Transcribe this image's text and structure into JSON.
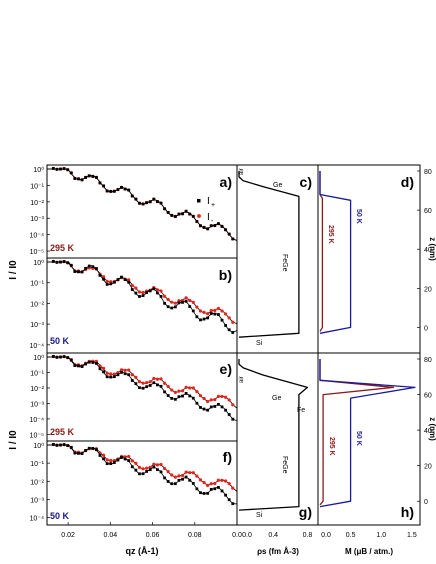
{
  "panels": {
    "a": {
      "label": "a)",
      "temperature": "295 K",
      "temp_color": "#8b1a1a"
    },
    "b": {
      "label": "b)",
      "temperature": "50 K",
      "temp_color": "#1a1a8b"
    },
    "c": {
      "label": "c)",
      "annotations": [
        "air",
        "Ge",
        "FeGe",
        "Si"
      ]
    },
    "d": {
      "label": "d)",
      "curve_labels": [
        "295 K",
        "50 K"
      ]
    },
    "e": {
      "label": "e)",
      "temperature": "295 K",
      "temp_color": "#8b1a1a"
    },
    "f": {
      "label": "f)",
      "temperature": "50 K",
      "temp_color": "#1a1a8b"
    },
    "g": {
      "label": "g)",
      "annotations": [
        "air",
        "Ge",
        "Fe",
        "FeGe",
        "Si"
      ]
    },
    "h": {
      "label": "h)",
      "curve_labels": [
        "295 K",
        "50 K"
      ]
    }
  },
  "legend": {
    "series": [
      {
        "name": "I+",
        "color": "#000000"
      },
      {
        "name": "I-",
        "color": "#e8231a"
      }
    ]
  },
  "axes": {
    "reflectivity_ylabel": "I / I0",
    "reflectivity_xlabel": "qz (Å-1)",
    "sld_xlabel": "ρs (fm Å-3)",
    "mag_xlabel": "M (μB / atm.)",
    "z_label": "z (nm)",
    "q_ticks": [
      "0.02",
      "0.04",
      "0.06",
      "0.08",
      "0.0"
    ],
    "sld_ticks": [
      "0.0",
      "0.4",
      "0.8"
    ],
    "mag_ticks": [
      "0.0",
      "0.5",
      "1.0",
      "1.5"
    ],
    "z_ticks": [
      "80",
      "60",
      "40",
      "20",
      "0"
    ],
    "y_ticks_a": [
      "10⁰",
      "10⁻¹",
      "10⁻²",
      "10⁻³",
      "10⁻⁴",
      "10⁻⁵"
    ],
    "y_ticks_b": [
      "10⁰",
      "10⁻¹",
      "10⁻²",
      "10⁻³",
      "10⁻⁴"
    ],
    "y_ticks_e": [
      "10⁰",
      "10⁻¹",
      "10⁻²",
      "10⁻³",
      "10⁻⁴",
      "10⁻⁵"
    ],
    "y_ticks_f": [
      "10⁰",
      "10⁻¹",
      "10⁻²",
      "10⁻³",
      "10⁻⁴"
    ]
  },
  "chart_data": [
    {
      "type": "scatter",
      "panel": "a",
      "xlabel": "qz (Å-1)",
      "ylabel": "I / I0",
      "xlim": [
        0.01,
        0.1
      ],
      "log_y": true,
      "series": [
        {
          "name": "I+"
        },
        {
          "name": "I-"
        }
      ]
    },
    {
      "type": "scatter",
      "panel": "b",
      "xlabel": "qz (Å-1)",
      "ylabel": "I / I0",
      "xlim": [
        0.01,
        0.1
      ],
      "log_y": true,
      "series": [
        {
          "name": "I+"
        },
        {
          "name": "I-"
        }
      ]
    },
    {
      "type": "line",
      "panel": "c",
      "xlabel": "ρs (fm Å-3)",
      "xlim": [
        0.0,
        0.9
      ],
      "ylim": [
        -10,
        80
      ],
      "series": [
        {
          "x": [
            0.0,
            0.0,
            0.05,
            0.28,
            0.7,
            0.7,
            0.0
          ],
          "y": [
            80,
            77,
            75,
            72,
            67,
            -3,
            -5
          ]
        }
      ]
    },
    {
      "type": "line",
      "panel": "d",
      "xlabel": "M (μB / atm.)",
      "ylabel": "z (nm)",
      "xlim": [
        0.0,
        1.6
      ],
      "ylim": [
        -10,
        80
      ],
      "series": [
        {
          "name": "295 K",
          "x": [
            0.0,
            0.0,
            0.04,
            0.04,
            0.0
          ],
          "y": [
            80,
            68,
            66,
            0,
            -2
          ]
        },
        {
          "name": "50 K",
          "x": [
            0.0,
            0.0,
            0.5,
            0.5,
            0.0
          ],
          "y": [
            80,
            68,
            65,
            0,
            -3
          ]
        }
      ]
    },
    {
      "type": "scatter",
      "panel": "e",
      "xlabel": "qz (Å-1)",
      "ylabel": "I / I0",
      "xlim": [
        0.01,
        0.1
      ],
      "log_y": true,
      "series": [
        {
          "name": "I+"
        },
        {
          "name": "I-"
        }
      ]
    },
    {
      "type": "scatter",
      "panel": "f",
      "xlabel": "qz (Å-1)",
      "ylabel": "I / I0",
      "xlim": [
        0.01,
        0.1
      ],
      "log_y": true,
      "series": [
        {
          "name": "I+"
        },
        {
          "name": "I-"
        }
      ]
    },
    {
      "type": "line",
      "panel": "g",
      "xlabel": "ρs (fm Å-3)",
      "xlim": [
        0.0,
        0.9
      ],
      "ylim": [
        -10,
        80
      ],
      "series": [
        {
          "x": [
            0.0,
            0.0,
            0.05,
            0.28,
            0.8,
            0.7,
            0.7,
            0.0
          ],
          "y": [
            80,
            77,
            75,
            71,
            64,
            60,
            -3,
            -5
          ]
        }
      ]
    },
    {
      "type": "line",
      "panel": "h",
      "xlabel": "M (μB / atm.)",
      "ylabel": "z (nm)",
      "xlim": [
        0.0,
        1.6
      ],
      "ylim": [
        -10,
        80
      ],
      "series": [
        {
          "name": "295 K",
          "x": [
            0.0,
            0.0,
            1.2,
            0.05,
            0.05,
            0.0
          ],
          "y": [
            80,
            68,
            64,
            60,
            0,
            -2
          ]
        },
        {
          "name": "50 K",
          "x": [
            0.0,
            0.0,
            1.55,
            0.5,
            0.5,
            0.0
          ],
          "y": [
            80,
            68,
            64,
            58,
            0,
            -3
          ]
        }
      ]
    }
  ]
}
